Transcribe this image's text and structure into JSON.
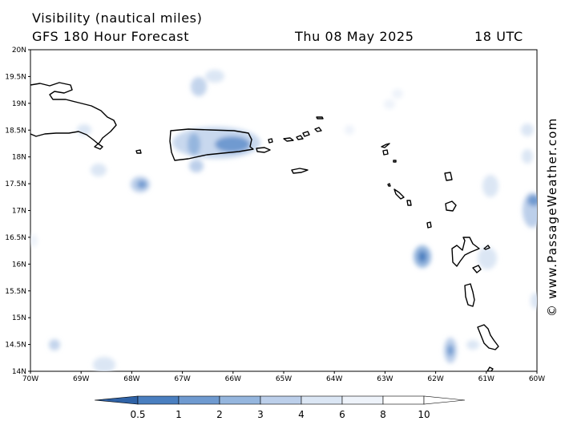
{
  "header": {
    "title": "Visibility (nautical miles)",
    "subtitle": "GFS 180 Hour Forecast",
    "date": "Thu 08 May 2025",
    "time": "18 UTC"
  },
  "credit": "© www.PassageWeather.com",
  "map": {
    "lat_labels": [
      "20N",
      "19.5N",
      "19N",
      "18.5N",
      "18N",
      "17.5N",
      "17N",
      "16.5N",
      "16N",
      "15.5N",
      "15N",
      "14.5N",
      "14N"
    ],
    "lon_labels": [
      "70W",
      "69W",
      "68W",
      "67W",
      "66W",
      "65W",
      "64W",
      "63W",
      "62W",
      "61W",
      "60W"
    ],
    "lat_range": [
      14,
      20
    ],
    "lon_range": [
      -70,
      -60
    ],
    "coastline_color": "#000000",
    "fill_colors": [
      "#2f62a6",
      "#4a7fc0",
      "#6f9ad0",
      "#95b6de",
      "#bccfea",
      "#dbe6f4",
      "#eef3fa",
      "#ffffff"
    ]
  },
  "colorbar": {
    "labels": [
      "0.5",
      "1",
      "2",
      "3",
      "4",
      "6",
      "8",
      "10"
    ]
  }
}
